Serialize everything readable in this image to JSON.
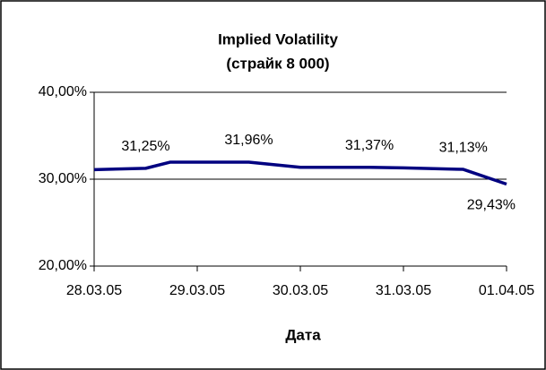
{
  "chart_data": {
    "type": "line",
    "title": "Implied Volatility",
    "subtitle": "(страйк  8 000)",
    "x_label": "Дата",
    "x": [
      0,
      0.5,
      0.74,
      1.5,
      2.0,
      2.67,
      3.0,
      3.58,
      4.0
    ],
    "xlim": [
      0,
      4
    ],
    "xticks": [
      {
        "value": 0,
        "label": "28.03.05"
      },
      {
        "value": 1,
        "label": "29.03.05"
      },
      {
        "value": 2,
        "label": "30.03.05"
      },
      {
        "value": 3,
        "label": "31.03.05"
      },
      {
        "value": 4,
        "label": "01.04.05"
      }
    ],
    "series": [
      {
        "color": "#000080",
        "values": [
          31.1,
          31.25,
          31.96,
          31.96,
          31.37,
          31.37,
          31.3,
          31.13,
          29.43
        ],
        "value_labels": [
          null,
          "31,25%",
          null,
          "31,96%",
          null,
          "31,37%",
          null,
          "31,13%",
          "29,43%"
        ]
      }
    ],
    "ylim": [
      20,
      40
    ],
    "yticks": [
      {
        "value": 20,
        "label": "20,00%"
      },
      {
        "value": 30,
        "label": "30,00%"
      },
      {
        "value": 40,
        "label": "40,00%"
      }
    ],
    "grid": true
  }
}
